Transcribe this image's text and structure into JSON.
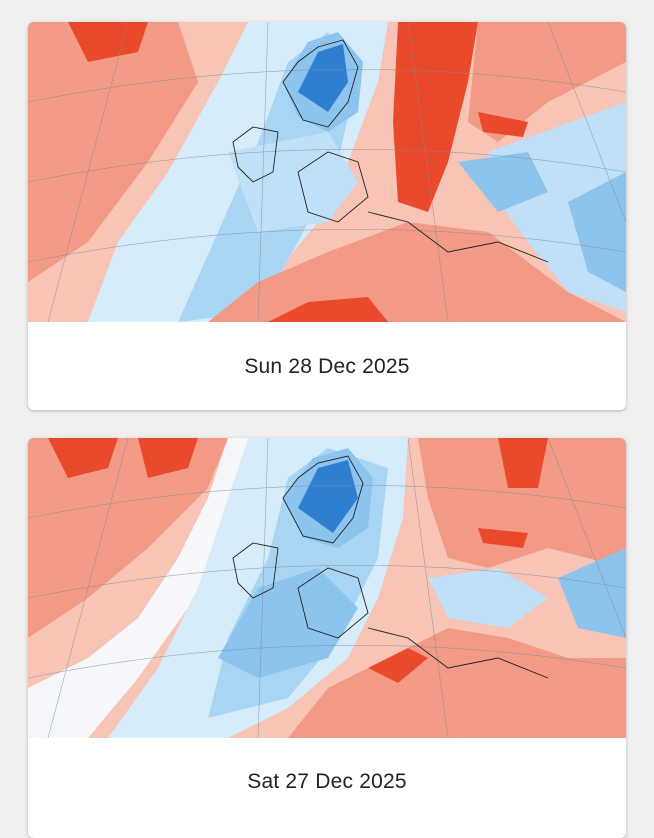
{
  "cards": [
    {
      "date_label": "Sun 28 Dec 2025"
    },
    {
      "date_label": "Sat 27 Dec 2025"
    }
  ],
  "colors": {
    "page_background": "#efefef",
    "card_background": "#ffffff",
    "warm_anomaly_light": "#f7c4b6",
    "warm_anomaly_mid": "#f29a85",
    "warm_anomaly_strong": "#ea4a2c",
    "cold_anomaly_light": "#d6ecfb",
    "cold_anomaly_mid": "#8cc4ee",
    "cold_anomaly_strong": "#2f7fd0"
  }
}
